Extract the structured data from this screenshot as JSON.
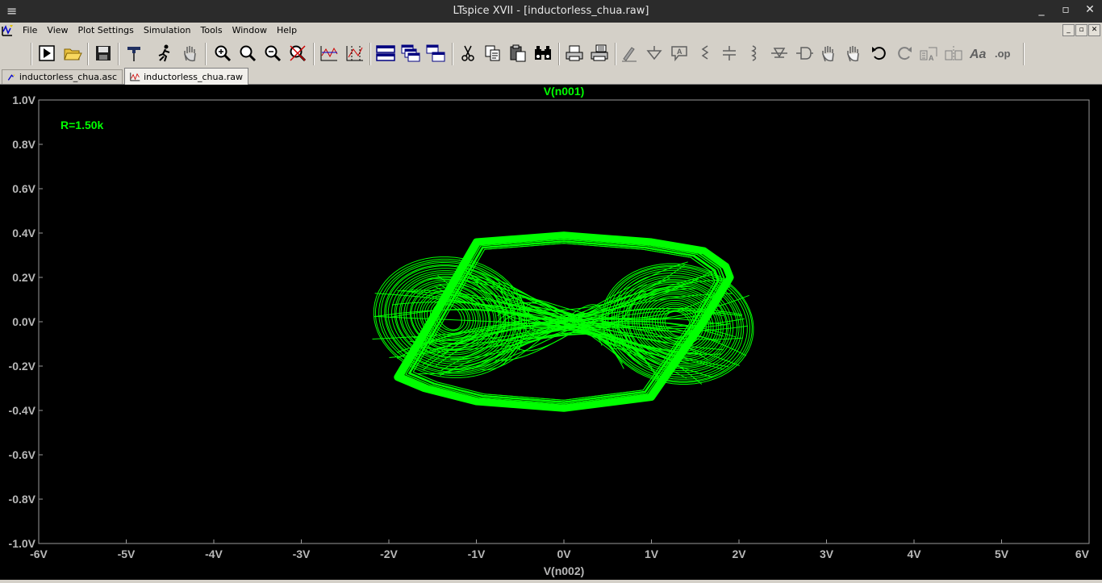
{
  "window": {
    "title": "LTspice XVII - [inductorless_chua.raw]",
    "menu_glyph": "≡",
    "controls": [
      "_",
      "▫",
      "✕"
    ]
  },
  "menu": {
    "items": [
      "File",
      "View",
      "Plot Settings",
      "Simulation",
      "Tools",
      "Window",
      "Help"
    ],
    "mdi_controls": [
      "_",
      "▫",
      "✕"
    ]
  },
  "toolbar": {
    "icons": [
      "run-icon",
      "open-icon",
      "save-icon",
      "control-panel-icon",
      "halt-icon",
      "pan-hand-icon",
      "zoom-in-icon",
      "zoom-full-icon",
      "zoom-out-icon",
      "zoom-cancel-icon",
      "autorange-icon",
      "mark-icon",
      "tile-horizontal-icon",
      "cascade-icon",
      "tile-vertical-icon",
      "cut-icon",
      "copy-icon",
      "paste-icon",
      "find-icon",
      "print-icon",
      "print-setup-icon",
      "wire-icon",
      "ground-icon",
      "label-icon",
      "resistor-icon",
      "capacitor-icon",
      "inductor-icon",
      "diode-icon",
      "component-icon",
      "move-icon",
      "drag-icon",
      "undo-icon",
      "redo-icon",
      "rotate-icon",
      "mirror-icon",
      "text-icon",
      "spice-directive-icon"
    ]
  },
  "tabs": [
    {
      "label": "inductorless_chua.asc",
      "icon": "schematic-icon",
      "active": false
    },
    {
      "label": "inductorless_chua.raw",
      "icon": "waveform-icon",
      "active": true
    }
  ],
  "plot": {
    "trace_color": "#00ff00",
    "axis_text_color": "#b8b8b8",
    "background": "#000000",
    "annotation": "R=1.50k"
  },
  "chart_data": {
    "type": "line",
    "title": "V(n001)",
    "xlabel": "V(n002)",
    "ylabel": "",
    "xlim": [
      -6,
      6
    ],
    "ylim": [
      -1.0,
      1.0
    ],
    "x_ticks": [
      "-6V",
      "-5V",
      "-4V",
      "-3V",
      "-2V",
      "-1V",
      "0V",
      "1V",
      "2V",
      "3V",
      "4V",
      "5V",
      "6V"
    ],
    "y_ticks": [
      "1.0V",
      "0.8V",
      "0.6V",
      "0.4V",
      "0.2V",
      "0.0V",
      "-0.2V",
      "-0.4V",
      "-0.6V",
      "-0.8V",
      "-1.0V"
    ],
    "grid": false,
    "series": [
      {
        "name": "V(n001)",
        "color": "#00ff00",
        "x": [
          -1.9,
          -1.6,
          -1.0,
          0.0,
          1.0,
          1.6,
          1.85,
          1.9,
          1.6,
          1.0,
          0.0,
          -1.0,
          -1.6,
          -1.9
        ],
        "y": [
          -0.25,
          -0.05,
          0.36,
          0.39,
          0.36,
          0.32,
          0.25,
          0.2,
          0.0,
          -0.34,
          -0.39,
          -0.36,
          -0.3,
          -0.25
        ]
      }
    ],
    "attractor_centers": [
      {
        "x": -1.3,
        "y": 0.02
      },
      {
        "x": 1.3,
        "y": -0.01
      }
    ]
  }
}
